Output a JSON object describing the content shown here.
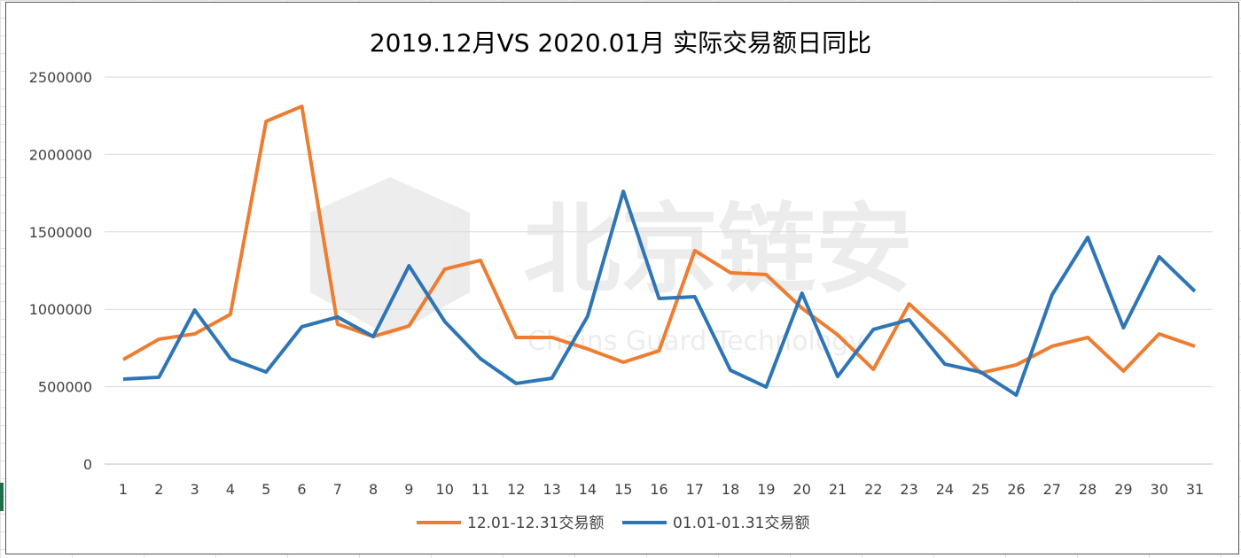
{
  "chart_data": {
    "type": "line",
    "title": "2019.12月VS 2020.01月 实际交易额日同比",
    "xlabel": "",
    "ylabel": "",
    "x": [
      1,
      2,
      3,
      4,
      5,
      6,
      7,
      8,
      9,
      10,
      11,
      12,
      13,
      14,
      15,
      16,
      17,
      18,
      19,
      20,
      21,
      22,
      23,
      24,
      25,
      26,
      27,
      28,
      29,
      30,
      31
    ],
    "ylim": [
      0,
      2500000
    ],
    "yticks": [
      0,
      500000,
      1000000,
      1500000,
      2000000,
      2500000
    ],
    "grid": true,
    "legend_position": "bottom",
    "series": [
      {
        "name": "12.01-12.31交易额",
        "color": "#ED7D31",
        "values": [
          675000,
          807000,
          841000,
          967000,
          2214000,
          2311000,
          904000,
          824000,
          892000,
          1259000,
          1316000,
          818000,
          818000,
          744000,
          658000,
          732000,
          1379000,
          1236000,
          1224000,
          1007000,
          835000,
          612000,
          1035000,
          824000,
          589000,
          641000,
          761000,
          818000,
          601000,
          841000,
          761000
        ]
      },
      {
        "name": "01.01-01.31交易额",
        "color": "#2E75B6",
        "values": [
          549000,
          561000,
          995000,
          681000,
          595000,
          887000,
          950000,
          824000,
          1281000,
          921000,
          681000,
          521000,
          555000,
          955000,
          1762000,
          1070000,
          1081000,
          606000,
          498000,
          1104000,
          566000,
          870000,
          933000,
          646000,
          595000,
          446000,
          1093000,
          1465000,
          881000,
          1339000,
          1116000
        ]
      }
    ]
  },
  "watermark": {
    "cn": "北京链安",
    "en": "Chains Guard Technology"
  }
}
